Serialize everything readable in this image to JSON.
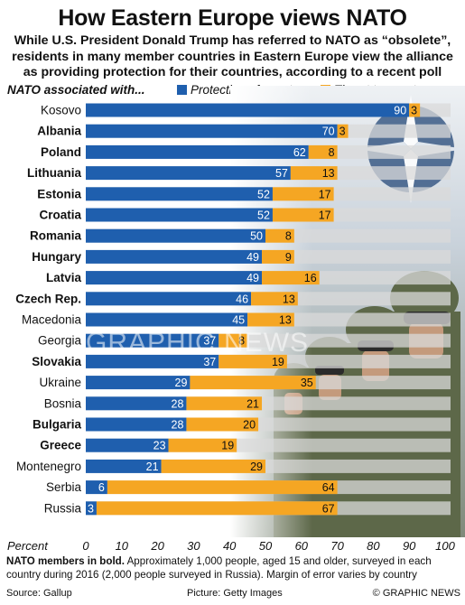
{
  "title": "How Eastern Europe views NATO",
  "subtitle": "While U.S. President Donald Trump has referred to NATO as “obsolete”, residents in many member countries in Eastern Europe view the alliance as providing protection for their countries, according to a recent poll",
  "legend": {
    "heading": "NATO associated with...",
    "protection_label": "Protection of country",
    "threat_label": "Threat to country"
  },
  "colors": {
    "protection": "#1f5fae",
    "threat": "#f5a623",
    "track": "#d9d9d9"
  },
  "chart_data": {
    "type": "bar",
    "orientation": "horizontal-stacked",
    "xlabel": "Percent",
    "xlim": [
      0,
      100
    ],
    "xticks": [
      0,
      10,
      20,
      30,
      40,
      50,
      60,
      70,
      80,
      90,
      100
    ],
    "categories": [
      "Kosovo",
      "Albania",
      "Poland",
      "Lithuania",
      "Estonia",
      "Croatia",
      "Romania",
      "Hungary",
      "Latvia",
      "Czech Rep.",
      "Macedonia",
      "Georgia",
      "Slovakia",
      "Ukraine",
      "Bosnia",
      "Bulgaria",
      "Greece",
      "Montenegro",
      "Serbia",
      "Russia"
    ],
    "nato_member": [
      false,
      true,
      true,
      true,
      true,
      true,
      true,
      true,
      true,
      true,
      false,
      false,
      true,
      false,
      false,
      true,
      true,
      false,
      false,
      false
    ],
    "series": [
      {
        "name": "Protection of country",
        "values": [
          90,
          70,
          62,
          57,
          52,
          52,
          50,
          49,
          49,
          46,
          45,
          37,
          37,
          29,
          28,
          28,
          23,
          21,
          6,
          3
        ]
      },
      {
        "name": "Threat to country",
        "values": [
          3,
          3,
          8,
          13,
          17,
          17,
          8,
          9,
          16,
          13,
          13,
          8,
          19,
          35,
          21,
          20,
          19,
          29,
          64,
          67
        ]
      }
    ]
  },
  "note": {
    "bold": "NATO members in bold.",
    "text": " Approximately 1,000 people, aged 15 and older, surveyed in each country during 2016 (2,000 people surveyed in Russia). Margin of error varies by country"
  },
  "footer": {
    "source": "Source: Gallup",
    "picture": "Picture: Getty Images",
    "credit": "© GRAPHIC NEWS"
  },
  "watermark": "GRAPHIC NEWS"
}
